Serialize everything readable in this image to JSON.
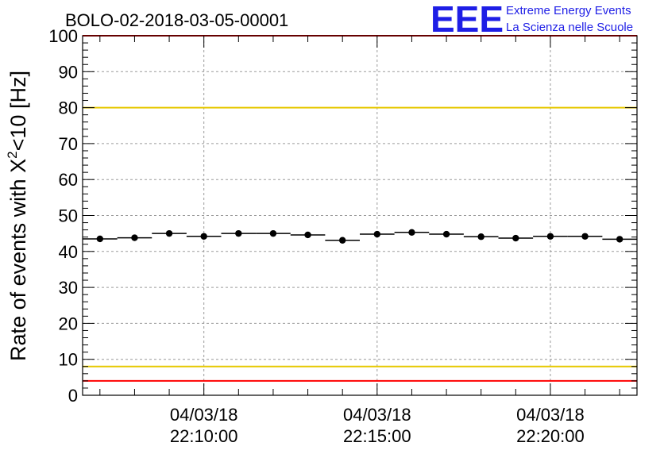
{
  "chart_data": {
    "type": "scatter",
    "title": "BOLO-02-2018-03-05-00001",
    "xlabel": "",
    "ylabel": "Rate of events with X²<10 [Hz]",
    "ylabel_parts": {
      "main": "Rate of events with X",
      "sup": "2",
      "rest": "<10 [Hz]"
    },
    "ylim": [
      0,
      100
    ],
    "yticks": [
      "0",
      "10",
      "20",
      "30",
      "40",
      "50",
      "60",
      "70",
      "80",
      "90",
      "100"
    ],
    "xlim": [
      "2018-03-04T22:06:30",
      "2018-03-04T22:22:30"
    ],
    "xticks": [
      {
        "x": "2018-03-04T22:10:00",
        "date": "04/03/18",
        "time": "22:10:00"
      },
      {
        "x": "2018-03-04T22:15:00",
        "date": "04/03/18",
        "time": "22:15:00"
      },
      {
        "x": "2018-03-04T22:20:00",
        "date": "04/03/18",
        "time": "22:20:00"
      }
    ],
    "grid": true,
    "series": [
      {
        "points": [
          {
            "x": "2018-03-04T22:07:00",
            "y": 43.5
          },
          {
            "x": "2018-03-04T22:08:00",
            "y": 43.8
          },
          {
            "x": "2018-03-04T22:09:00",
            "y": 45.0
          },
          {
            "x": "2018-03-04T22:10:00",
            "y": 44.2
          },
          {
            "x": "2018-03-04T22:11:00",
            "y": 45.0
          },
          {
            "x": "2018-03-04T22:12:00",
            "y": 45.0
          },
          {
            "x": "2018-03-04T22:13:00",
            "y": 44.6
          },
          {
            "x": "2018-03-04T22:14:00",
            "y": 43.1
          },
          {
            "x": "2018-03-04T22:15:00",
            "y": 44.8
          },
          {
            "x": "2018-03-04T22:16:00",
            "y": 45.3
          },
          {
            "x": "2018-03-04T22:17:00",
            "y": 44.8
          },
          {
            "x": "2018-03-04T22:18:00",
            "y": 44.1
          },
          {
            "x": "2018-03-04T22:19:00",
            "y": 43.7
          },
          {
            "x": "2018-03-04T22:20:00",
            "y": 44.2
          },
          {
            "x": "2018-03-04T22:21:00",
            "y": 44.2
          },
          {
            "x": "2018-03-04T22:22:00",
            "y": 43.4
          }
        ]
      }
    ],
    "reference_lines": [
      {
        "y": 100,
        "color": "#ff0000"
      },
      {
        "y": 80,
        "color": "#e6c800"
      },
      {
        "y": 8,
        "color": "#e6c800"
      },
      {
        "y": 4,
        "color": "#ff0000"
      }
    ],
    "marker_color": "#000000"
  },
  "logo": {
    "mark": "EEE",
    "line1": "Extreme Energy Events",
    "line2": "La Scienza nelle Scuole",
    "color": "#1e1ee6"
  }
}
